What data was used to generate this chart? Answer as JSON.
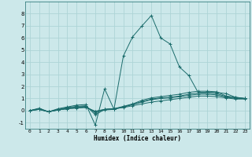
{
  "xlabel": "Humidex (Indice chaleur)",
  "bg_color": "#cce8ea",
  "grid_color": "#add4d6",
  "line_color": "#1a6b6b",
  "xlim": [
    -0.5,
    23.5
  ],
  "ylim": [
    -1.5,
    9.0
  ],
  "xticks": [
    0,
    1,
    2,
    3,
    4,
    5,
    6,
    7,
    8,
    9,
    10,
    11,
    12,
    13,
    14,
    15,
    16,
    17,
    18,
    19,
    20,
    21,
    22,
    23
  ],
  "yticks": [
    -1,
    0,
    1,
    2,
    3,
    4,
    5,
    6,
    7,
    8
  ],
  "series": [
    [
      0.0,
      0.1,
      -0.1,
      0.05,
      0.15,
      0.2,
      0.25,
      -0.05,
      0.1,
      0.15,
      0.25,
      0.4,
      0.55,
      0.7,
      0.8,
      0.9,
      1.0,
      1.1,
      1.2,
      1.2,
      1.15,
      1.05,
      0.95,
      0.95
    ],
    [
      0.0,
      0.1,
      -0.1,
      0.05,
      0.15,
      0.25,
      0.3,
      -0.1,
      0.1,
      0.15,
      0.3,
      0.5,
      0.7,
      0.9,
      1.0,
      1.05,
      1.15,
      1.25,
      1.35,
      1.35,
      1.3,
      1.1,
      1.0,
      1.0
    ],
    [
      0.0,
      0.1,
      -0.1,
      0.05,
      0.2,
      0.3,
      0.35,
      -0.2,
      0.05,
      0.1,
      0.3,
      0.5,
      0.75,
      0.95,
      1.05,
      1.1,
      1.2,
      1.35,
      1.45,
      1.45,
      1.4,
      1.15,
      1.05,
      1.0
    ],
    [
      0.0,
      0.15,
      -0.1,
      0.1,
      0.25,
      0.35,
      0.4,
      -0.35,
      0.1,
      0.15,
      0.35,
      0.55,
      0.85,
      1.05,
      1.15,
      1.25,
      1.35,
      1.5,
      1.6,
      1.6,
      1.55,
      1.2,
      1.1,
      1.0
    ],
    [
      0.0,
      0.2,
      -0.1,
      0.15,
      0.3,
      0.45,
      0.5,
      -1.2,
      1.8,
      0.1,
      4.5,
      6.1,
      7.0,
      7.85,
      6.0,
      5.5,
      3.6,
      2.9,
      1.5,
      1.5,
      1.5,
      1.4,
      1.1,
      1.0
    ]
  ]
}
